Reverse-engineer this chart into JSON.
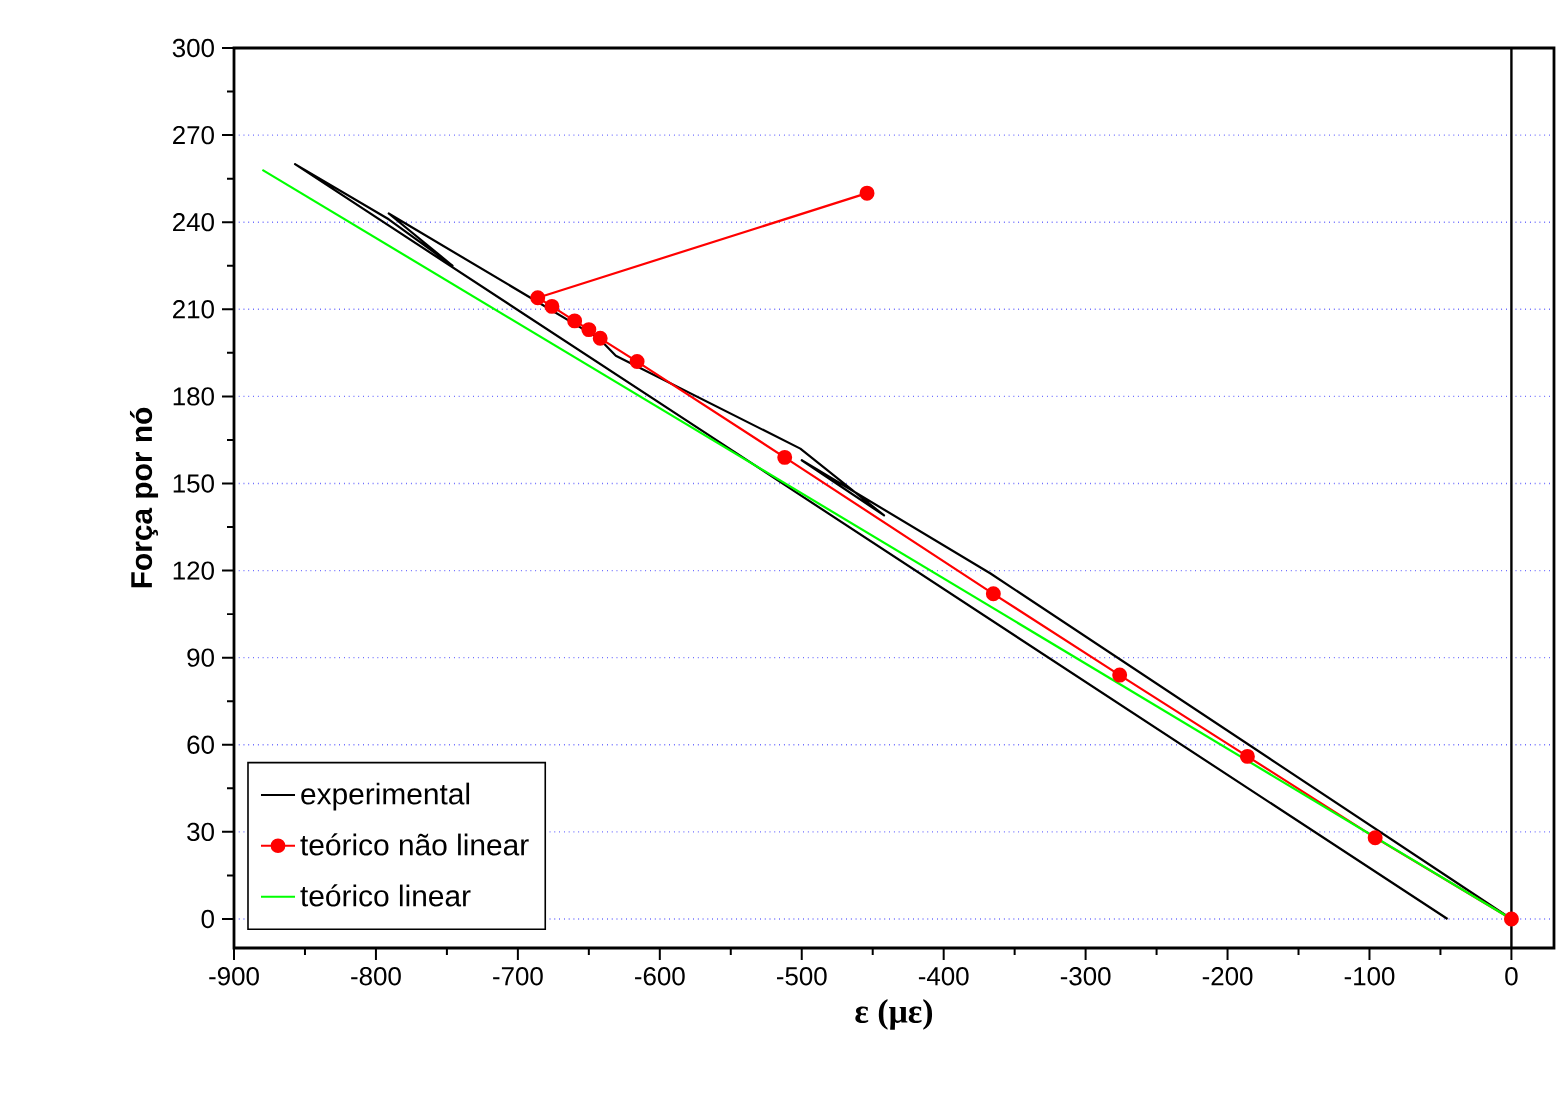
{
  "chart_data": {
    "type": "line",
    "xlabel": "ε (με)",
    "ylabel": "Força por nó",
    "xlim": [
      -900,
      30
    ],
    "ylim": [
      -10,
      300
    ],
    "xticks": [
      -900,
      -800,
      -700,
      -600,
      -500,
      -400,
      -300,
      -200,
      -100,
      0
    ],
    "yticks": [
      0,
      30,
      60,
      90,
      120,
      150,
      180,
      210,
      240,
      270,
      300
    ],
    "grid": "y",
    "legend": "bottom left",
    "ref_lines": [
      {
        "axis": "x",
        "value": 0,
        "color": "#000000"
      }
    ],
    "series": [
      {
        "name": "experimental",
        "color": "#000000",
        "marker": "none",
        "x": [
          0,
          -367,
          -500,
          -442,
          -501,
          -631,
          -643,
          -791,
          -746,
          -791,
          -857,
          -45
        ],
        "values": [
          0,
          119,
          158,
          139,
          162,
          194,
          200,
          243,
          225,
          241,
          260,
          0
        ]
      },
      {
        "name": "teórico não linear",
        "color": "#ff0000",
        "marker": "circle",
        "x": [
          0,
          -96,
          -186,
          -276,
          -365,
          -512,
          -616,
          -642,
          -650,
          -660,
          -676,
          -686,
          -454
        ],
        "values": [
          0,
          28,
          56,
          84,
          112,
          159,
          192,
          200,
          203,
          206,
          211,
          214,
          250
        ]
      },
      {
        "name": "teórico linear",
        "color": "#00ff00",
        "marker": "none",
        "x": [
          0,
          -880
        ],
        "values": [
          0,
          258
        ]
      }
    ]
  }
}
